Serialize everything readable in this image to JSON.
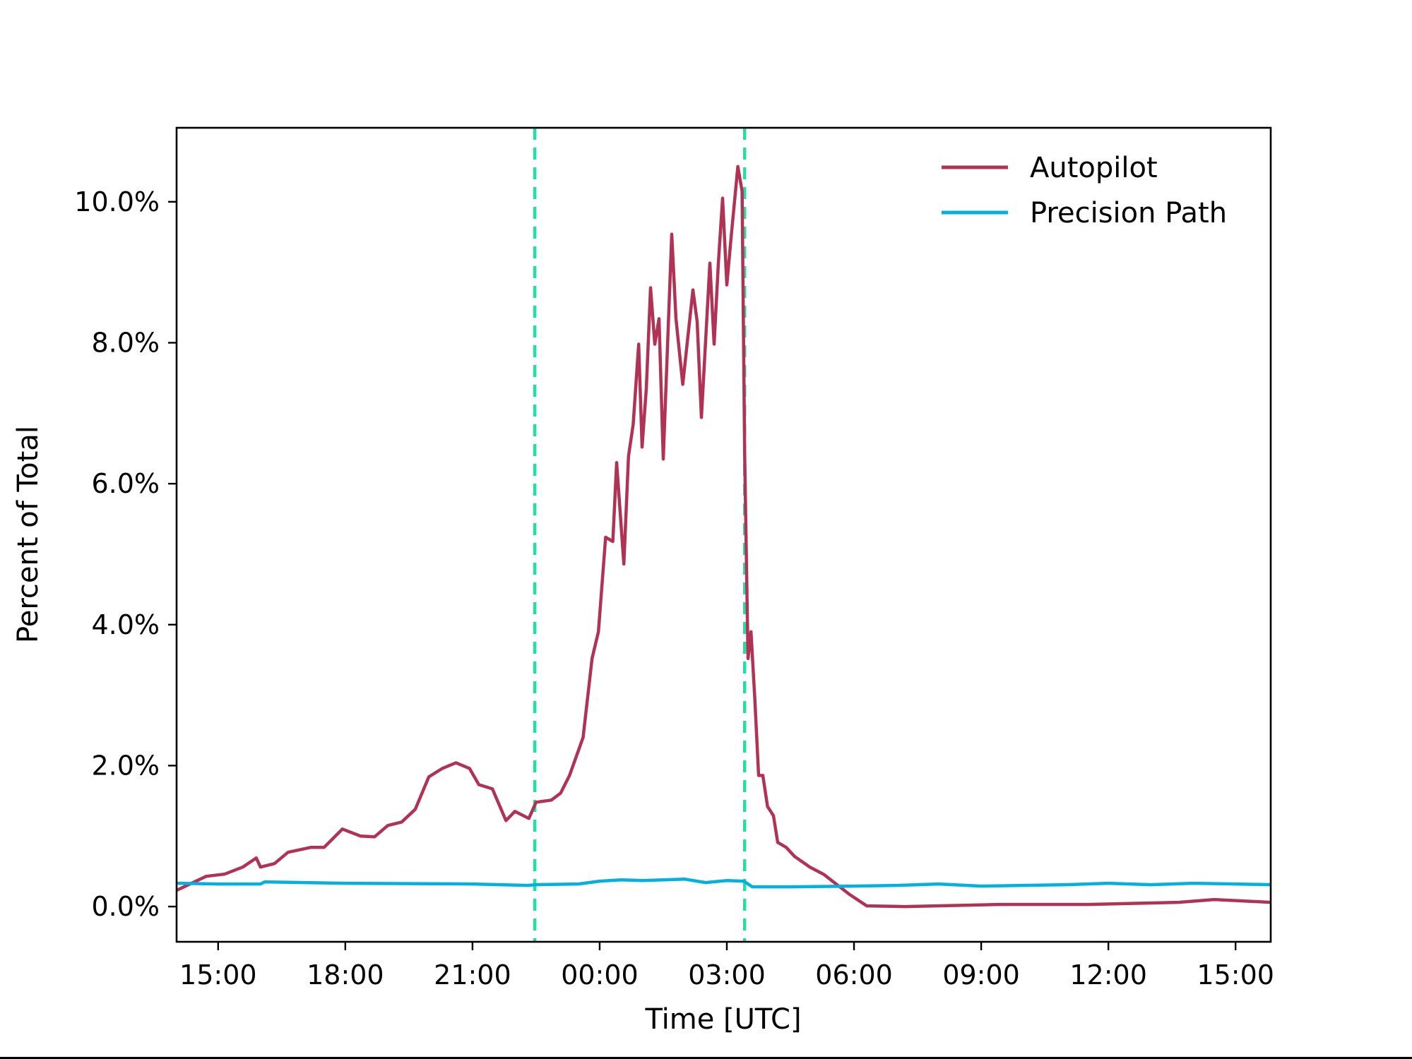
{
  "chart_data": {
    "type": "line",
    "title": "",
    "xlabel": "Time [UTC]",
    "ylabel": "Percent of Total",
    "x_unit": "hours since 15:00 (first day)",
    "xlim": [
      -0.98,
      24.83
    ],
    "ylim": [
      -0.5,
      11.05
    ],
    "x_ticks": [
      {
        "pos": 0,
        "label": "15:00"
      },
      {
        "pos": 3,
        "label": "18:00"
      },
      {
        "pos": 6,
        "label": "21:00"
      },
      {
        "pos": 9,
        "label": "00:00"
      },
      {
        "pos": 12,
        "label": "03:00"
      },
      {
        "pos": 15,
        "label": "06:00"
      },
      {
        "pos": 18,
        "label": "09:00"
      },
      {
        "pos": 21,
        "label": "12:00"
      },
      {
        "pos": 24,
        "label": "15:00"
      }
    ],
    "y_ticks": [
      {
        "pos": 0,
        "label": "0.0%"
      },
      {
        "pos": 2,
        "label": "2.0%"
      },
      {
        "pos": 4,
        "label": "4.0%"
      },
      {
        "pos": 6,
        "label": "6.0%"
      },
      {
        "pos": 8,
        "label": "8.0%"
      },
      {
        "pos": 10,
        "label": "10.0%"
      }
    ],
    "grid": false,
    "legend_position": "upper right",
    "vlines": [
      {
        "x": 7.47,
        "label": "~22:28",
        "color": "#22e0a0",
        "style": "dashed"
      },
      {
        "x": 12.42,
        "label": "~03:25",
        "color": "#22e0a0",
        "style": "dashed"
      }
    ],
    "series": [
      {
        "name": "Autopilot",
        "color": "#b03355",
        "x": [
          -0.98,
          -0.28,
          0.15,
          0.58,
          0.9,
          1.0,
          1.33,
          1.65,
          2.19,
          2.5,
          2.93,
          3.36,
          3.69,
          4.0,
          4.33,
          4.65,
          4.97,
          5.29,
          5.61,
          5.93,
          6.15,
          6.47,
          6.79,
          7.0,
          7.33,
          7.5,
          7.86,
          8.08,
          8.29,
          8.61,
          8.82,
          8.97,
          9.14,
          9.31,
          9.4,
          9.57,
          9.68,
          9.79,
          9.92,
          10.0,
          10.1,
          10.2,
          10.3,
          10.4,
          10.5,
          10.7,
          10.8,
          10.96,
          11.2,
          11.3,
          11.4,
          11.6,
          11.7,
          11.8,
          11.9,
          12.0,
          12.1,
          12.26,
          12.36,
          12.42,
          12.5,
          12.57,
          12.66,
          12.75,
          12.85,
          12.96,
          13.1,
          13.2,
          13.4,
          13.6,
          13.96,
          14.28,
          14.6,
          14.9,
          15.3,
          16.2,
          18.4,
          20.5,
          22.65,
          23.5,
          24.83
        ],
        "values": [
          0.23,
          0.43,
          0.46,
          0.56,
          0.69,
          0.56,
          0.61,
          0.77,
          0.84,
          0.84,
          1.1,
          1.0,
          0.99,
          1.15,
          1.2,
          1.38,
          1.84,
          1.96,
          2.04,
          1.96,
          1.73,
          1.67,
          1.22,
          1.35,
          1.25,
          1.48,
          1.51,
          1.61,
          1.86,
          2.4,
          3.52,
          3.9,
          5.24,
          5.18,
          6.3,
          4.86,
          6.39,
          6.84,
          7.98,
          6.52,
          7.35,
          8.78,
          7.98,
          8.34,
          6.35,
          9.54,
          8.34,
          7.41,
          8.75,
          8.3,
          6.94,
          9.13,
          7.98,
          9.13,
          10.05,
          8.82,
          9.49,
          10.5,
          10.15,
          6.45,
          3.52,
          3.9,
          2.95,
          1.86,
          1.86,
          1.42,
          1.29,
          0.91,
          0.84,
          0.71,
          0.56,
          0.46,
          0.31,
          0.17,
          0.01,
          0.0,
          0.03,
          0.03,
          0.06,
          0.1,
          0.06
        ]
      },
      {
        "name": "Precision Path",
        "color": "#03b0e0",
        "x": [
          -0.98,
          0,
          1.0,
          1.1,
          3,
          6,
          7.3,
          7.5,
          8.5,
          9.0,
          9.5,
          10.0,
          11.0,
          11.5,
          12.0,
          12.4,
          12.6,
          13.5,
          15.0,
          16.0,
          17.0,
          18.0,
          20.0,
          21.0,
          22.0,
          23.0,
          24.0,
          24.83
        ],
        "values": [
          0.33,
          0.32,
          0.32,
          0.35,
          0.33,
          0.32,
          0.3,
          0.31,
          0.32,
          0.36,
          0.38,
          0.37,
          0.39,
          0.34,
          0.37,
          0.36,
          0.28,
          0.28,
          0.29,
          0.3,
          0.32,
          0.29,
          0.31,
          0.33,
          0.31,
          0.33,
          0.32,
          0.31
        ]
      }
    ]
  },
  "legend": {
    "items": [
      {
        "label": "Autopilot",
        "color": "#b03355"
      },
      {
        "label": "Precision Path",
        "color": "#03b0e0"
      }
    ]
  },
  "axes": {
    "xlabel": "Time [UTC]",
    "ylabel": "Percent of Total"
  }
}
